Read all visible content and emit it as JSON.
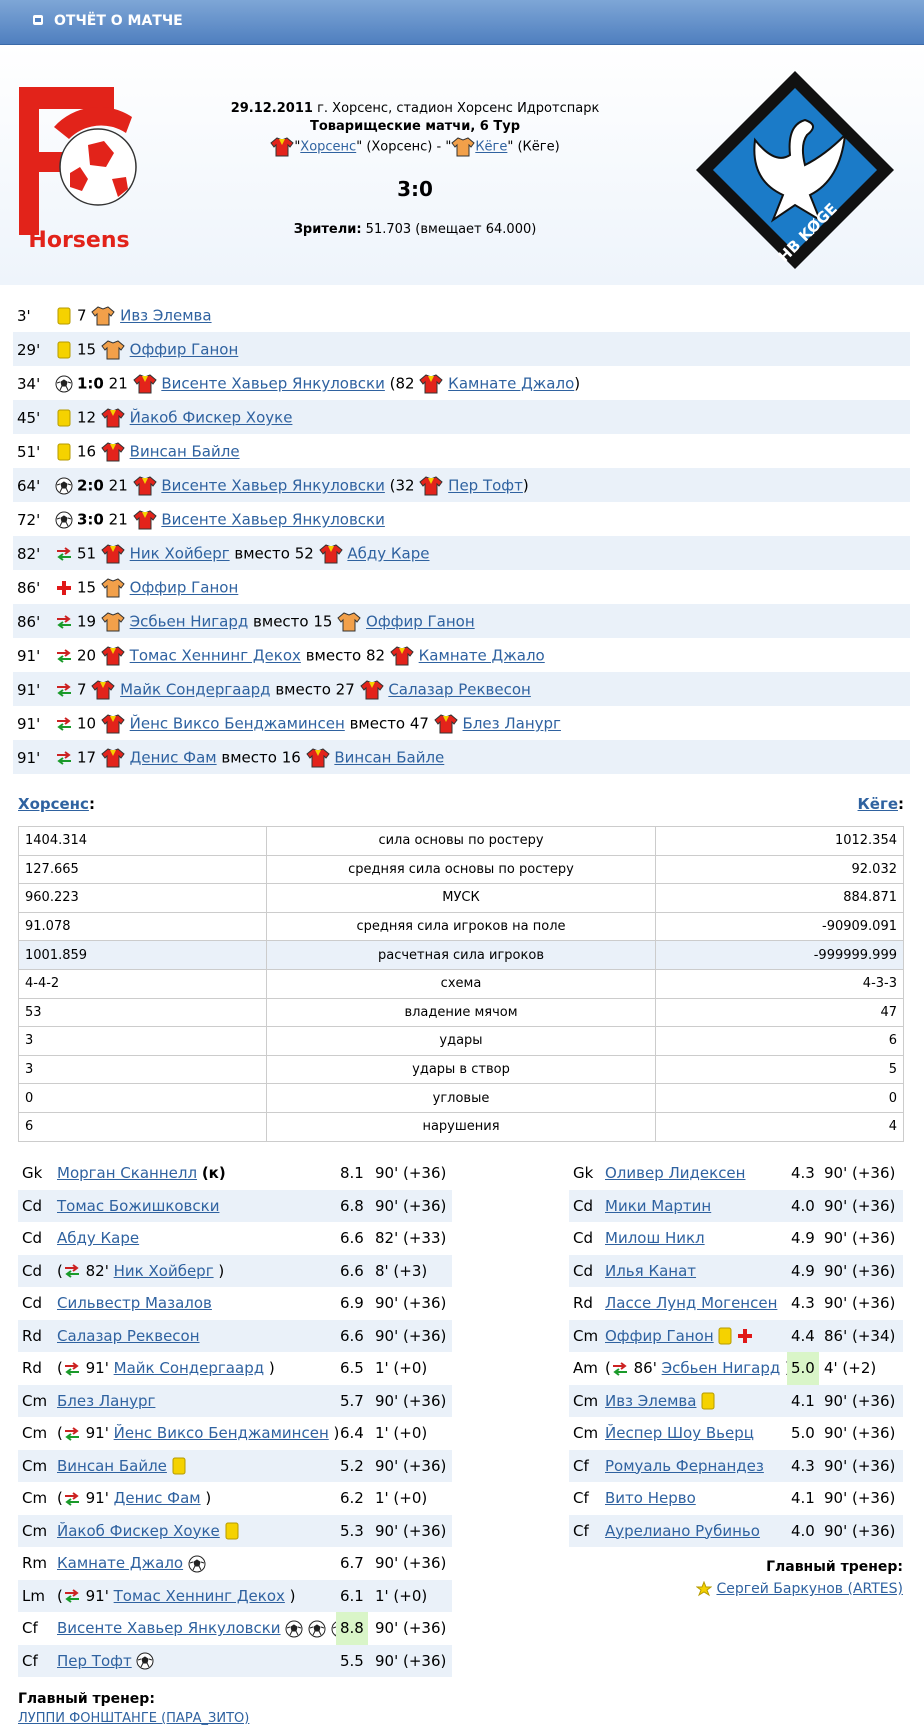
{
  "header": {
    "title": "ОТЧЁТ О МАТЧЕ"
  },
  "logos": {
    "home_text": "Horsens",
    "away_text": "HB KØGE"
  },
  "match": {
    "date": "29.12.2011",
    "place": "г. Хорсенс, стадион Хорсенс Идротспарк",
    "tournament": "Товарищеские матчи, 6 Тур",
    "teams_line": [
      "\"",
      "Хорсенс",
      "\" (Хорсенс) - \"",
      "Кёге",
      "\" (Кёге)"
    ],
    "score": "3:0",
    "attendance_label": "Зрители:",
    "attendance": "51.703 (вмещает 64.000)"
  },
  "events": [
    {
      "minute": "3'",
      "kind": "yellow",
      "number": "7",
      "team": "away",
      "player": "Ивз Элемва"
    },
    {
      "minute": "29'",
      "kind": "yellow",
      "number": "15",
      "team": "away",
      "player": "Оффир Ганон"
    },
    {
      "minute": "34'",
      "kind": "goal",
      "score": "1:0",
      "number": "21",
      "team": "home",
      "player": "Висенте Хавьер Янкуловски",
      "mid": "(82",
      "player2": "Камнате Джало",
      "end": ")"
    },
    {
      "minute": "45'",
      "kind": "yellow",
      "number": "12",
      "team": "home",
      "player": "Йакоб Фискер Хоуке"
    },
    {
      "minute": "51'",
      "kind": "yellow",
      "number": "16",
      "team": "home",
      "player": "Винсан Байле"
    },
    {
      "minute": "64'",
      "kind": "goal",
      "score": "2:0",
      "number": "21",
      "team": "home",
      "player": "Висенте Хавьер Янкуловски",
      "mid": "(32",
      "player2": "Пер Тофт",
      "end": ")"
    },
    {
      "minute": "72'",
      "kind": "goal",
      "score": "3:0",
      "number": "21",
      "team": "home",
      "player": "Висенте Хавьер Янкуловски"
    },
    {
      "minute": "82'",
      "kind": "sub",
      "number": "51",
      "team": "home",
      "player": "Ник Хойберг",
      "mid": "вместо 52",
      "player2": "Абду Каре"
    },
    {
      "minute": "86'",
      "kind": "red",
      "number": "15",
      "team": "away",
      "player": "Оффир Ганон"
    },
    {
      "minute": "86'",
      "kind": "sub",
      "number": "19",
      "team": "away",
      "player": "Эсбьен Нигард",
      "mid": "вместо 15",
      "player2": "Оффир Ганон"
    },
    {
      "minute": "91'",
      "kind": "sub",
      "number": "20",
      "team": "home",
      "player": "Томас Хеннинг Декох",
      "mid": "вместо 82",
      "player2": "Камнате Джало"
    },
    {
      "minute": "91'",
      "kind": "sub",
      "number": "7",
      "team": "home",
      "player": "Майк Сондергаард",
      "mid": "вместо 27",
      "player2": "Салазар Реквесон"
    },
    {
      "minute": "91'",
      "kind": "sub",
      "number": "10",
      "team": "home",
      "player": "Йенс Виксо Бенджаминсен",
      "mid": "вместо 47",
      "player2": "Блез Ланург"
    },
    {
      "minute": "91'",
      "kind": "sub",
      "number": "17",
      "team": "home",
      "player": "Денис Фам",
      "mid": "вместо 16",
      "player2": "Винсан Байле"
    }
  ],
  "stats": {
    "home_name": "Хорсенс",
    "away_name": "Кёге",
    "sep": ":",
    "rows": [
      [
        "1404.314",
        "сила основы по ростеру",
        "1012.354"
      ],
      [
        "127.665",
        "средняя сила основы по ростеру",
        "92.032"
      ],
      [
        "960.223",
        "МУСК",
        "884.871"
      ],
      [
        "91.078",
        "средняя сила игроков на поле",
        "-90909.091"
      ],
      [
        "1001.859",
        "расчетная сила игроков",
        "-999999.999"
      ],
      [
        "4-4-2",
        "схема",
        "4-3-3"
      ],
      [
        "53",
        "владение мячом",
        "47"
      ],
      [
        "3",
        "удары",
        "6"
      ],
      [
        "3",
        "удары в створ",
        "5"
      ],
      [
        "0",
        "угловые",
        "0"
      ],
      [
        "6",
        "нарушения",
        "4"
      ]
    ]
  },
  "lineups": {
    "home": {
      "players": [
        {
          "pos": "Gk",
          "name": "Морган Сканнелл",
          "captain": "(к)",
          "rating": "8.1",
          "minutes": "90' (+36)"
        },
        {
          "pos": "Cd",
          "name": "Томас Божишковски",
          "rating": "6.8",
          "minutes": "90' (+36)"
        },
        {
          "pos": "Cd",
          "name": "Абду Каре",
          "rating": "6.6",
          "minutes": "82' (+33)"
        },
        {
          "pos": "Cd",
          "sub": {
            "open": "(",
            "minute": "82'",
            "close": ")"
          },
          "name": "Ник Хойберг",
          "rating": "6.6",
          "minutes": "8' (+3)"
        },
        {
          "pos": "Cd",
          "name": "Сильвестр Мазалов",
          "rating": "6.9",
          "minutes": "90' (+36)"
        },
        {
          "pos": "Rd",
          "name": "Салазар Реквесон",
          "rating": "6.6",
          "minutes": "90' (+36)"
        },
        {
          "pos": "Rd",
          "sub": {
            "open": "(",
            "minute": "91'",
            "close": ")"
          },
          "name": "Майк Сондергаард",
          "rating": "6.5",
          "minutes": "1' (+0)"
        },
        {
          "pos": "Cm",
          "name": "Блез Ланург",
          "rating": "5.7",
          "minutes": "90' (+36)"
        },
        {
          "pos": "Cm",
          "sub": {
            "open": "(",
            "minute": "91'",
            "close": ")"
          },
          "name": "Йенс Виксо Бенджаминсен",
          "rating": "6.4",
          "minutes": "1' (+0)"
        },
        {
          "pos": "Cm",
          "name": "Винсан Байле",
          "icons": [
            "yellow"
          ],
          "rating": "5.2",
          "minutes": "90' (+36)"
        },
        {
          "pos": "Cm",
          "sub": {
            "open": "(",
            "minute": "91'",
            "close": ")"
          },
          "name": "Денис Фам",
          "rating": "6.2",
          "minutes": "1' (+0)"
        },
        {
          "pos": "Cm",
          "name": "Йакоб Фискер Хоуке",
          "icons": [
            "yellow"
          ],
          "rating": "5.3",
          "minutes": "90' (+36)"
        },
        {
          "pos": "Rm",
          "name": "Камнате Джало",
          "icons": [
            "goal"
          ],
          "rating": "6.7",
          "minutes": "90' (+36)"
        },
        {
          "pos": "Lm",
          "sub": {
            "open": "(",
            "minute": "91'",
            "close": ")"
          },
          "name": "Томас Хеннинг Декох",
          "rating": "6.1",
          "minutes": "1' (+0)"
        },
        {
          "pos": "Cf",
          "name": "Висенте Хавьер Янкуловски",
          "icons": [
            "goal",
            "goal",
            "goal"
          ],
          "rating": "8.8",
          "best": true,
          "minutes": "90' (+36)"
        },
        {
          "pos": "Cf",
          "name": "Пер Тофт",
          "icons": [
            "goal"
          ],
          "rating": "5.5",
          "minutes": "90' (+36)"
        }
      ],
      "coach_label": "Главный тренер:",
      "coach": "ЛУППИ ФОНШТАНГЕ (ПАРА_ЗИТО)"
    },
    "away": {
      "players": [
        {
          "pos": "Gk",
          "name": "Оливер Лидексен",
          "rating": "4.3",
          "minutes": "90' (+36)"
        },
        {
          "pos": "Cd",
          "name": "Мики Мартин",
          "rating": "4.0",
          "minutes": "90' (+36)"
        },
        {
          "pos": "Cd",
          "name": "Милош Никл",
          "rating": "4.9",
          "minutes": "90' (+36)"
        },
        {
          "pos": "Cd",
          "name": "Илья Канат",
          "rating": "4.9",
          "minutes": "90' (+36)"
        },
        {
          "pos": "Rd",
          "name": "Лассе Лунд Могенсен",
          "rating": "4.3",
          "minutes": "90' (+36)"
        },
        {
          "pos": "Cm",
          "name": "Оффир Ганон",
          "icons": [
            "yellow",
            "red"
          ],
          "rating": "4.4",
          "minutes": "86' (+34)"
        },
        {
          "pos": "Am",
          "sub": {
            "open": "(",
            "minute": "86'",
            "close": ")"
          },
          "name": "Эсбьен Нигард",
          "rating": "5.0",
          "best": true,
          "minutes": "4' (+2)"
        },
        {
          "pos": "Cm",
          "name": "Ивз Элемва",
          "icons": [
            "yellow"
          ],
          "rating": "4.1",
          "minutes": "90' (+36)"
        },
        {
          "pos": "Cm",
          "name": "Йеспер Шоу Вьерц",
          "rating": "5.0",
          "minutes": "90' (+36)"
        },
        {
          "pos": "Cf",
          "name": "Ромуаль Фернандез",
          "rating": "4.3",
          "minutes": "90' (+36)"
        },
        {
          "pos": "Cf",
          "name": "Вито Нерво",
          "rating": "4.1",
          "minutes": "90' (+36)"
        },
        {
          "pos": "Cf",
          "name": "Аурелиано Рубиньо",
          "rating": "4.0",
          "minutes": "90' (+36)"
        }
      ],
      "coach_label": "Главный тренер:",
      "coach": "Сергей Баркунов (ARTES)"
    }
  }
}
